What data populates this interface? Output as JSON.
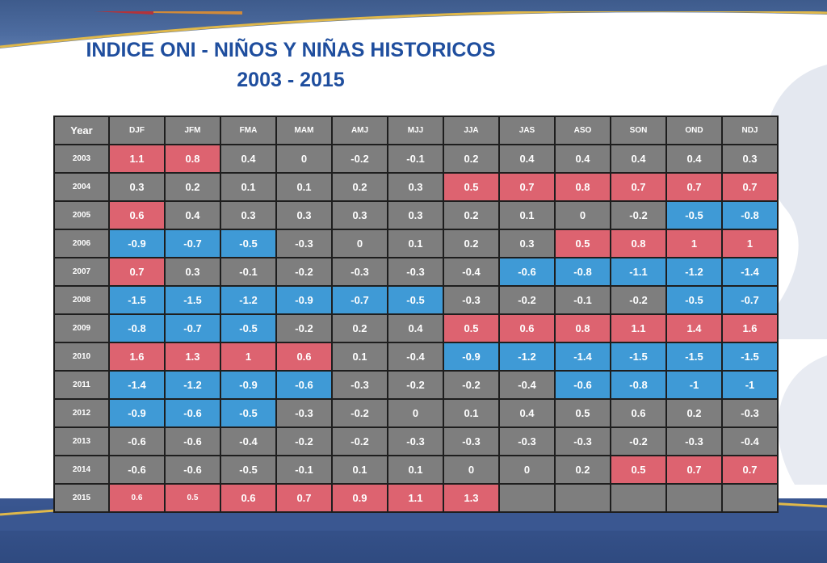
{
  "title": {
    "line1": "INDICE ONI - NIÑOS Y NIÑAS HISTORICOS",
    "line2": "2003 - 2015"
  },
  "colors": {
    "hot": "#dd6370",
    "cold": "#3f9ad6",
    "neutral": "#7e7e7e"
  },
  "chart_data": {
    "type": "table",
    "columns": [
      "Year",
      "DJF",
      "JFM",
      "FMA",
      "MAM",
      "AMJ",
      "MJJ",
      "JJA",
      "JAS",
      "ASO",
      "SON",
      "OND",
      "NDJ"
    ],
    "rows": [
      {
        "year": "2003",
        "values": [
          "1.1",
          "0.8",
          "0.4",
          "0",
          "-0.2",
          "-0.1",
          "0.2",
          "0.4",
          "0.4",
          "0.4",
          "0.4",
          "0.3"
        ],
        "status": [
          "h",
          "h",
          "n",
          "n",
          "n",
          "n",
          "n",
          "n",
          "n",
          "n",
          "n",
          "n"
        ]
      },
      {
        "year": "2004",
        "values": [
          "0.3",
          "0.2",
          "0.1",
          "0.1",
          "0.2",
          "0.3",
          "0.5",
          "0.7",
          "0.8",
          "0.7",
          "0.7",
          "0.7"
        ],
        "status": [
          "n",
          "n",
          "n",
          "n",
          "n",
          "n",
          "h",
          "h",
          "h",
          "h",
          "h",
          "h"
        ]
      },
      {
        "year": "2005",
        "values": [
          "0.6",
          "0.4",
          "0.3",
          "0.3",
          "0.3",
          "0.3",
          "0.2",
          "0.1",
          "0",
          "-0.2",
          "-0.5",
          "-0.8"
        ],
        "status": [
          "h",
          "n",
          "n",
          "n",
          "n",
          "n",
          "n",
          "n",
          "n",
          "n",
          "c",
          "c"
        ]
      },
      {
        "year": "2006",
        "values": [
          "-0.9",
          "-0.7",
          "-0.5",
          "-0.3",
          "0",
          "0.1",
          "0.2",
          "0.3",
          "0.5",
          "0.8",
          "1",
          "1"
        ],
        "status": [
          "c",
          "c",
          "c",
          "n",
          "n",
          "n",
          "n",
          "n",
          "h",
          "h",
          "h",
          "h"
        ]
      },
      {
        "year": "2007",
        "values": [
          "0.7",
          "0.3",
          "-0.1",
          "-0.2",
          "-0.3",
          "-0.3",
          "-0.4",
          "-0.6",
          "-0.8",
          "-1.1",
          "-1.2",
          "-1.4"
        ],
        "status": [
          "h",
          "n",
          "n",
          "n",
          "n",
          "n",
          "n",
          "c",
          "c",
          "c",
          "c",
          "c"
        ]
      },
      {
        "year": "2008",
        "values": [
          "-1.5",
          "-1.5",
          "-1.2",
          "-0.9",
          "-0.7",
          "-0.5",
          "-0.3",
          "-0.2",
          "-0.1",
          "-0.2",
          "-0.5",
          "-0.7"
        ],
        "status": [
          "c",
          "c",
          "c",
          "c",
          "c",
          "c",
          "n",
          "n",
          "n",
          "n",
          "c",
          "c"
        ]
      },
      {
        "year": "2009",
        "values": [
          "-0.8",
          "-0.7",
          "-0.5",
          "-0.2",
          "0.2",
          "0.4",
          "0.5",
          "0.6",
          "0.8",
          "1.1",
          "1.4",
          "1.6"
        ],
        "status": [
          "c",
          "c",
          "c",
          "n",
          "n",
          "n",
          "h",
          "h",
          "h",
          "h",
          "h",
          "h"
        ]
      },
      {
        "year": "2010",
        "values": [
          "1.6",
          "1.3",
          "1",
          "0.6",
          "0.1",
          "-0.4",
          "-0.9",
          "-1.2",
          "-1.4",
          "-1.5",
          "-1.5",
          "-1.5"
        ],
        "status": [
          "h",
          "h",
          "h",
          "h",
          "n",
          "n",
          "c",
          "c",
          "c",
          "c",
          "c",
          "c"
        ]
      },
      {
        "year": "2011",
        "values": [
          "-1.4",
          "-1.2",
          "-0.9",
          "-0.6",
          "-0.3",
          "-0.2",
          "-0.2",
          "-0.4",
          "-0.6",
          "-0.8",
          "-1",
          "-1"
        ],
        "status": [
          "c",
          "c",
          "c",
          "c",
          "n",
          "n",
          "n",
          "n",
          "c",
          "c",
          "c",
          "c"
        ]
      },
      {
        "year": "2012",
        "values": [
          "-0.9",
          "-0.6",
          "-0.5",
          "-0.3",
          "-0.2",
          "0",
          "0.1",
          "0.4",
          "0.5",
          "0.6",
          "0.2",
          "-0.3"
        ],
        "status": [
          "c",
          "c",
          "c",
          "n",
          "n",
          "n",
          "n",
          "n",
          "n",
          "n",
          "n",
          "n"
        ]
      },
      {
        "year": "2013",
        "values": [
          "-0.6",
          "-0.6",
          "-0.4",
          "-0.2",
          "-0.2",
          "-0.3",
          "-0.3",
          "-0.3",
          "-0.3",
          "-0.2",
          "-0.3",
          "-0.4"
        ],
        "status": [
          "n",
          "n",
          "n",
          "n",
          "n",
          "n",
          "n",
          "n",
          "n",
          "n",
          "n",
          "n"
        ]
      },
      {
        "year": "2014",
        "values": [
          "-0.6",
          "-0.6",
          "-0.5",
          "-0.1",
          "0.1",
          "0.1",
          "0",
          "0",
          "0.2",
          "0.5",
          "0.7",
          "0.7"
        ],
        "status": [
          "n",
          "n",
          "n",
          "n",
          "n",
          "n",
          "n",
          "n",
          "n",
          "h",
          "h",
          "h"
        ]
      },
      {
        "year": "2015",
        "values": [
          "0.6",
          "0.5",
          "0.6",
          "0.7",
          "0.9",
          "1.1",
          "1.3",
          "",
          "",
          "",
          "",
          ""
        ],
        "status": [
          "h",
          "h",
          "h",
          "h",
          "h",
          "h",
          "h",
          "n",
          "n",
          "n",
          "n",
          "n"
        ]
      }
    ]
  }
}
